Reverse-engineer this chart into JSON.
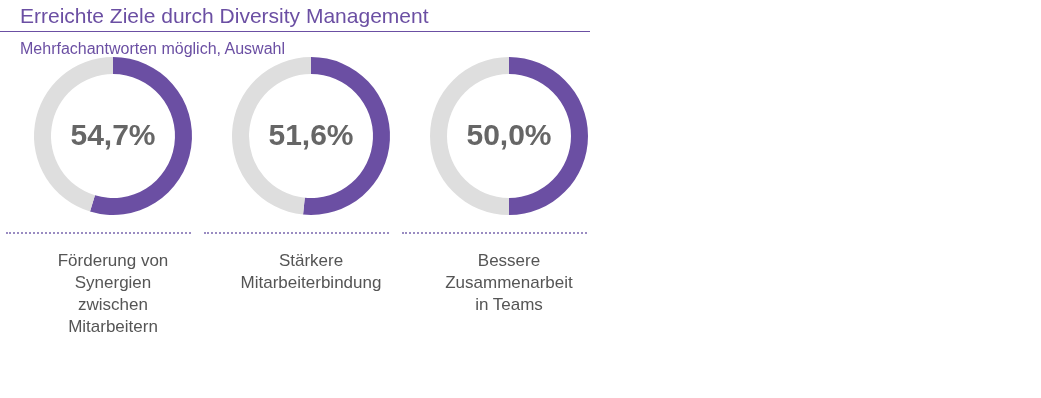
{
  "chart_data": [
    {
      "type": "donut",
      "title": "Erreichte Ziele durch Diversity Management",
      "subtitle": "Mehrfachantworten möglich, Auswahl",
      "categories": [
        "Förderung von Synergien zwischen Mitarbeitern",
        null
      ],
      "values": [
        54.7,
        45.3
      ],
      "colors": [
        "#6b4fa3",
        "#dedede"
      ],
      "value_labels": [
        "54,7%",
        null
      ]
    },
    {
      "type": "donut",
      "categories": [
        "Stärkere Mitarbeiterbindung",
        null
      ],
      "values": [
        51.6,
        48.4
      ],
      "colors": [
        "#6b4fa3",
        "#dedede"
      ],
      "value_labels": [
        "51,6%",
        null
      ]
    },
    {
      "type": "donut",
      "categories": [
        "Bessere Zusammenarbeit in Teams",
        null
      ],
      "values": [
        50.0,
        50.0
      ],
      "colors": [
        "#6b4fa3",
        "#dedede"
      ],
      "value_labels": [
        "50,0%",
        null
      ]
    }
  ]
}
